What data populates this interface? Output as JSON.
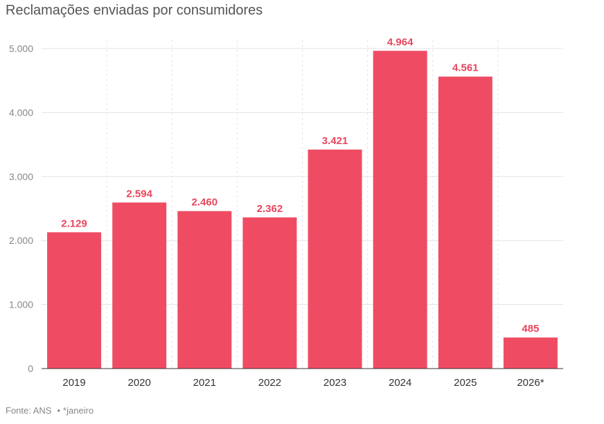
{
  "title": "Reclamações enviadas por consumidores",
  "source": {
    "label": "Fonte: ANS",
    "note": "*janeiro"
  },
  "colors": {
    "bar": "#ef4c63",
    "label": "#e8455c",
    "grid": "#e3e3e3",
    "axis": "#333333"
  },
  "chart_data": {
    "type": "bar",
    "title": "Reclamações enviadas por consumidores",
    "xlabel": "",
    "ylabel": "",
    "categories": [
      "2019",
      "2020",
      "2021",
      "2022",
      "2023",
      "2024",
      "2025",
      "2026*"
    ],
    "values": [
      2129,
      2594,
      2460,
      2362,
      3421,
      4964,
      4561,
      485
    ],
    "value_labels": [
      "2.129",
      "2.594",
      "2.460",
      "2.362",
      "3.421",
      "4.964",
      "4.561",
      "485"
    ],
    "yticks": [
      0,
      1000,
      2000,
      3000,
      4000,
      5000
    ],
    "ytick_labels": [
      "0",
      "1.000",
      "2.000",
      "3.000",
      "4.000",
      "5.000"
    ],
    "ylim": [
      0,
      5000
    ],
    "grid": true,
    "legend": "none"
  }
}
